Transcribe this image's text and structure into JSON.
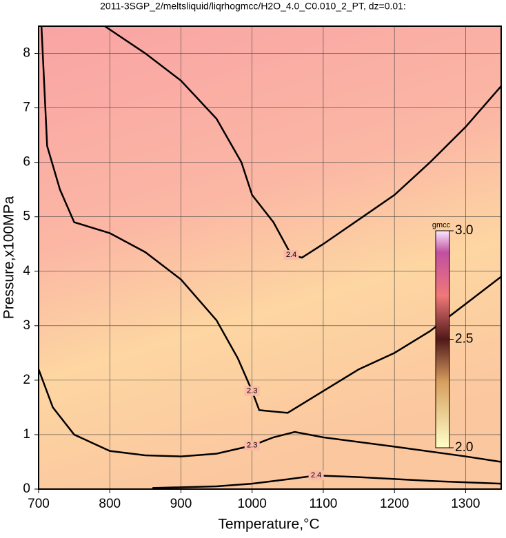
{
  "chart_data": {
    "type": "contour",
    "title": "2011-3SGP_2/meltsliquid/liqrhogmcc/H2O_4.0_C0.010_2_PT, dz=0.01:",
    "x_label": "Temperature,°C",
    "y_label": "Pressure,x100MPa",
    "xlim": [
      700,
      1350
    ],
    "ylim": [
      0,
      8.5
    ],
    "xticks": [
      700,
      800,
      900,
      1000,
      1100,
      1200,
      1300
    ],
    "yticks": [
      0,
      1,
      2,
      3,
      4,
      5,
      6,
      7,
      8
    ],
    "grid": true,
    "color": "#000000",
    "series": [
      {
        "name": "2.4",
        "x": [
          793,
          850,
          900,
          950,
          985,
          1000,
          1030,
          1055,
          1070,
          1100,
          1150,
          1200,
          1250,
          1300,
          1350
        ],
        "values": [
          8.5,
          8.0,
          7.5,
          6.8,
          6.0,
          5.4,
          4.9,
          4.3,
          4.25,
          4.5,
          4.95,
          5.4,
          6.0,
          6.65,
          7.4
        ]
      },
      {
        "name": "2.3",
        "x": [
          704,
          712,
          730,
          750,
          800,
          850,
          900,
          950,
          980,
          1000,
          1010,
          1050,
          1100,
          1150,
          1200,
          1250,
          1300,
          1350
        ],
        "values": [
          8.5,
          6.3,
          5.5,
          4.9,
          4.7,
          4.35,
          3.85,
          3.1,
          2.4,
          1.8,
          1.45,
          1.4,
          1.8,
          2.2,
          2.5,
          2.9,
          3.4,
          3.9
        ]
      },
      {
        "name": "2.3",
        "x": [
          700,
          720,
          750,
          800,
          850,
          900,
          950,
          1000,
          1030,
          1060,
          1100,
          1200,
          1300,
          1350
        ],
        "values": [
          2.2,
          1.5,
          1.0,
          0.7,
          0.62,
          0.6,
          0.65,
          0.8,
          0.95,
          1.05,
          0.95,
          0.78,
          0.6,
          0.5
        ]
      },
      {
        "name": "2.4",
        "x": [
          860,
          950,
          1000,
          1050,
          1090,
          1150,
          1250,
          1350
        ],
        "values": [
          0.02,
          0.05,
          0.1,
          0.18,
          0.25,
          0.22,
          0.15,
          0.1
        ]
      }
    ],
    "colorbar_label": "gmcc",
    "clim": [
      2.0,
      3.0
    ],
    "cticks": [
      {
        "value": 2.0,
        "label": "2.0"
      },
      {
        "value": 2.5,
        "label": "2.5"
      },
      {
        "value": 3.0,
        "label": "3.0"
      }
    ]
  }
}
